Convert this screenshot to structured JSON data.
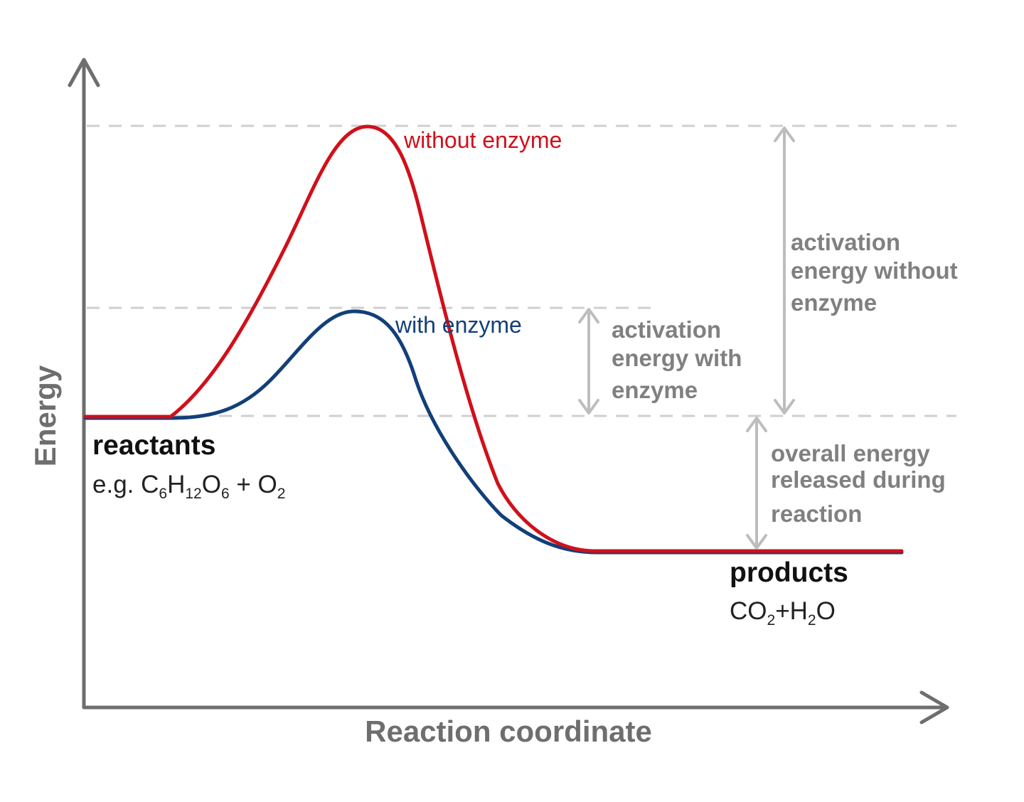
{
  "axes": {
    "y_label": "Energy",
    "x_label": "Reaction coordinate"
  },
  "curves": {
    "without_enzyme": {
      "label": "without enzyme",
      "color": "#d0101a"
    },
    "with_enzyme": {
      "label": "with enzyme",
      "color": "#123f7a"
    }
  },
  "reactants": {
    "label": "reactants",
    "formula_prefix": "e.g. ",
    "formula_parts": [
      "C",
      "6",
      "H",
      "12",
      "O",
      "6",
      " + O",
      "2"
    ]
  },
  "products": {
    "label": "products",
    "formula_parts": [
      "CO",
      "2",
      "+H",
      "2",
      "O"
    ]
  },
  "annotations": {
    "activation_without": [
      "activation",
      "energy without",
      "enzyme"
    ],
    "activation_with": [
      "activation",
      "energy with",
      "enzyme"
    ],
    "overall_released": [
      "overall energy",
      "released during",
      "reaction"
    ]
  },
  "colors": {
    "axis": "#6e6e6e",
    "guide": "#cfcfcf",
    "measure_arrow": "#bdbdbd"
  }
}
